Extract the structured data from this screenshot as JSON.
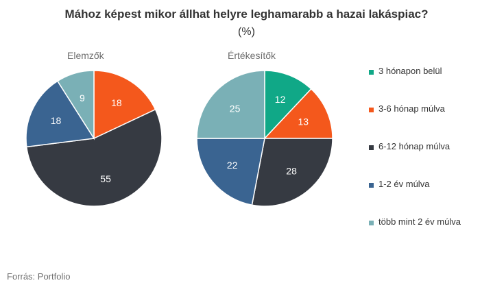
{
  "chart_data": {
    "type": "pie",
    "title": "Mához képest mikor állhat helyre leghamarabb a hazai lakáspiac?",
    "subtitle": "(%)",
    "categories": [
      "3 hónapon belül",
      "3-6 hónap múlva",
      "6-12 hónap múlva",
      "1-2 év múlva",
      "több mint 2 év múlva"
    ],
    "colors": [
      "#10a887",
      "#f4581c",
      "#363a42",
      "#3a6491",
      "#7ab0b6"
    ],
    "series": [
      {
        "name": "Elemzők",
        "values": [
          0,
          18,
          55,
          18,
          9
        ]
      },
      {
        "name": "Értékesítők",
        "values": [
          12,
          13,
          28,
          22,
          25
        ]
      }
    ],
    "legend_position": "right",
    "source": "Forrás: Portfolio"
  }
}
